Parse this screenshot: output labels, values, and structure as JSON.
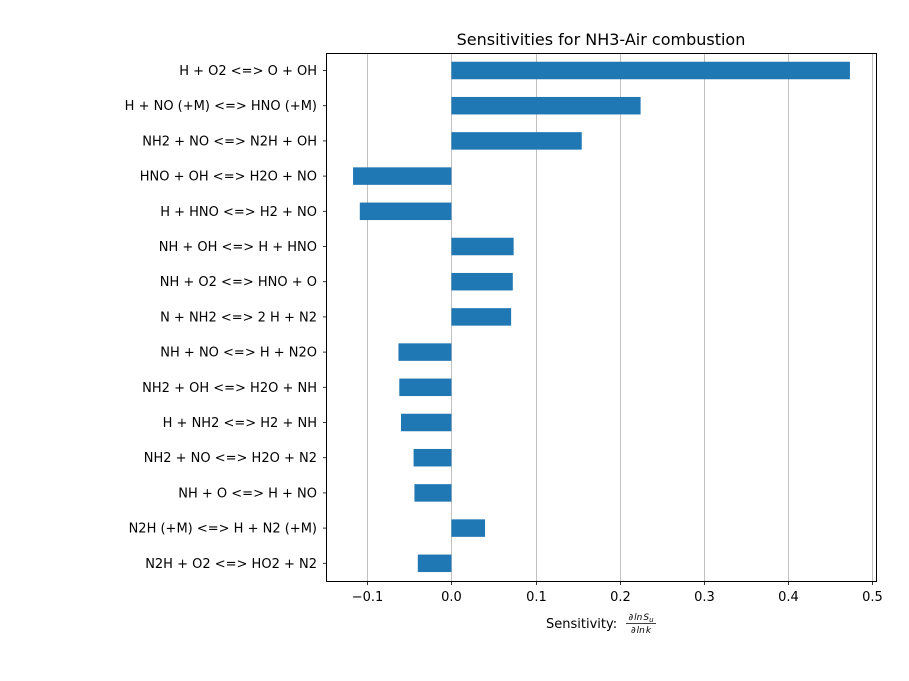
{
  "chart_data": {
    "type": "bar",
    "orientation": "horizontal",
    "title": "Sensitivities for NH3-Air combustion",
    "xlabel_prefix": "Sensitivity: ",
    "xlabel_math": {
      "num_d": "∂",
      "num_ln": "ln",
      "num_var": "S",
      "num_sub": "u",
      "den_d": "∂",
      "den_ln": "ln",
      "den_var": "k"
    },
    "ylabel": "",
    "xlim": [
      -0.148,
      0.505
    ],
    "xticks": [
      -0.1,
      0.0,
      0.1,
      0.2,
      0.3,
      0.4,
      0.5
    ],
    "xtick_labels": [
      "−0.1",
      "0.0",
      "0.1",
      "0.2",
      "0.3",
      "0.4",
      "0.5"
    ],
    "grid": "x",
    "bar_color": "#1f77b4",
    "categories": [
      "H + O2 <=> O + OH",
      "H + NO (+M) <=> HNO (+M)",
      "NH2 + NO <=> N2H + OH",
      "HNO + OH <=> H2O + NO",
      "H + HNO <=> H2 + NO",
      "NH + OH <=> H + HNO",
      "NH + O2 <=> HNO + O",
      "N + NH2 <=> 2 H + N2",
      "NH + NO <=> H + N2O",
      "NH2 + OH <=> H2O + NH",
      "H + NH2 <=> H2 + NH",
      "NH2 + NO <=> H2O + N2",
      "NH + O <=> H + NO",
      "N2H (+M) <=> H + N2 (+M)",
      "N2H + O2 <=> HO2 + N2"
    ],
    "values": [
      0.474,
      0.225,
      0.155,
      -0.117,
      -0.109,
      0.074,
      0.073,
      0.071,
      -0.063,
      -0.062,
      -0.06,
      -0.045,
      -0.044,
      0.04,
      -0.04
    ]
  }
}
